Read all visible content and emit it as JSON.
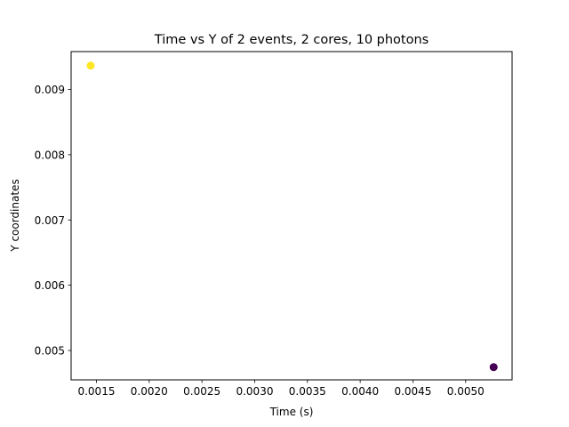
{
  "chart_data": {
    "type": "scatter",
    "title": "Time vs Y of 2 events, 2 cores, 10 photons",
    "xlabel": "Time (s)",
    "ylabel": "Y coordinates",
    "xlim": [
      0.00126,
      0.00544
    ],
    "ylim": [
      0.00455,
      0.00958
    ],
    "xticks": [
      0.0015,
      0.002,
      0.0025,
      0.003,
      0.0035,
      0.004,
      0.0045,
      0.005
    ],
    "xtick_labels": [
      "0.0015",
      "0.0020",
      "0.0025",
      "0.0030",
      "0.0035",
      "0.0040",
      "0.0045",
      "0.0050"
    ],
    "yticks": [
      0.005,
      0.006,
      0.007,
      0.008,
      0.009
    ],
    "ytick_labels": [
      "0.005",
      "0.006",
      "0.007",
      "0.008",
      "0.009"
    ],
    "grid": false,
    "points": [
      {
        "x": 0.001445,
        "y": 0.009365,
        "color": "#fde725"
      },
      {
        "x": 0.005265,
        "y": 0.004745,
        "color": "#440154"
      }
    ]
  }
}
